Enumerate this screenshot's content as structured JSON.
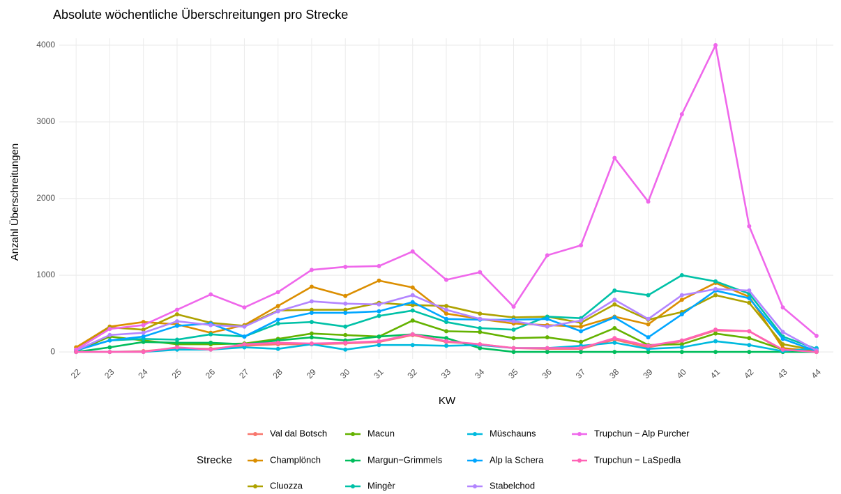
{
  "chart_data": {
    "type": "line",
    "title": "Absolute wöchentliche Überschreitungen pro Strecke",
    "x_label": "KW",
    "y_label": "Anzahl Überschreitungen",
    "legend_title": "Strecke",
    "categories": [
      "22",
      "23",
      "24",
      "25",
      "26",
      "27",
      "28",
      "29",
      "30",
      "31",
      "32",
      "33",
      "34",
      "35",
      "36",
      "37",
      "38",
      "39",
      "40",
      "41",
      "42",
      "43",
      "44"
    ],
    "ylim": [
      -90,
      4090
    ],
    "yticks": [
      0,
      1000,
      2000,
      3000,
      4000
    ],
    "grid": true,
    "legend": "bottom",
    "series": [
      {
        "name": "Val dal Botsch",
        "color": "#F8766D",
        "values": [
          0,
          0,
          10,
          50,
          40,
          80,
          100,
          100,
          110,
          130,
          220,
          130,
          100,
          50,
          40,
          40,
          160,
          60,
          140,
          280,
          270,
          20,
          0
        ]
      },
      {
        "name": "Champlönch",
        "color": "#DB8E00",
        "values": [
          60,
          330,
          390,
          360,
          250,
          350,
          600,
          850,
          730,
          930,
          840,
          500,
          430,
          370,
          350,
          330,
          460,
          360,
          680,
          900,
          720,
          50,
          10
        ]
      },
      {
        "name": "Cluozza",
        "color": "#AEA200",
        "values": [
          30,
          320,
          290,
          490,
          380,
          340,
          540,
          550,
          550,
          640,
          610,
          600,
          500,
          450,
          460,
          380,
          620,
          420,
          520,
          740,
          640,
          100,
          20
        ]
      },
      {
        "name": "Macun",
        "color": "#64B200",
        "values": [
          10,
          200,
          150,
          100,
          100,
          110,
          170,
          240,
          220,
          200,
          410,
          270,
          260,
          180,
          190,
          130,
          310,
          90,
          100,
          240,
          180,
          30,
          10
        ]
      },
      {
        "name": "Margun−Grimmels",
        "color": "#00BD5C",
        "values": [
          0,
          60,
          130,
          120,
          120,
          100,
          150,
          190,
          150,
          200,
          230,
          180,
          50,
          0,
          0,
          0,
          0,
          0,
          0,
          0,
          0,
          0,
          0
        ]
      },
      {
        "name": "Mingèr",
        "color": "#00C1A7",
        "values": [
          20,
          150,
          170,
          160,
          230,
          200,
          370,
          390,
          330,
          470,
          540,
          390,
          310,
          290,
          460,
          440,
          800,
          740,
          1000,
          920,
          760,
          200,
          40
        ]
      },
      {
        "name": "Müschauns",
        "color": "#00BADE",
        "values": [
          0,
          0,
          0,
          30,
          30,
          60,
          40,
          100,
          30,
          90,
          90,
          80,
          90,
          50,
          50,
          80,
          120,
          40,
          60,
          140,
          90,
          10,
          50
        ]
      },
      {
        "name": "Alp la Schera",
        "color": "#00A6FF",
        "values": [
          20,
          150,
          200,
          340,
          370,
          200,
          420,
          510,
          510,
          530,
          650,
          430,
          420,
          420,
          430,
          270,
          450,
          190,
          490,
          800,
          700,
          170,
          10
        ]
      },
      {
        "name": "Stabelchod",
        "color": "#B385FF",
        "values": [
          20,
          220,
          250,
          400,
          350,
          330,
          530,
          660,
          630,
          620,
          740,
          550,
          430,
          400,
          330,
          410,
          680,
          430,
          740,
          820,
          800,
          260,
          20
        ]
      },
      {
        "name": "Trupchun − Alp Purcher",
        "color": "#EF67EB",
        "values": [
          30,
          300,
          350,
          550,
          750,
          580,
          780,
          1070,
          1110,
          1120,
          1310,
          940,
          1040,
          590,
          1260,
          1390,
          2530,
          1960,
          3100,
          4000,
          1640,
          580,
          210
        ]
      },
      {
        "name": "Trupchun − LaSpedla",
        "color": "#FF63B6",
        "values": [
          0,
          0,
          0,
          60,
          30,
          100,
          120,
          110,
          120,
          140,
          230,
          140,
          100,
          50,
          50,
          50,
          180,
          80,
          150,
          290,
          270,
          30,
          0
        ]
      }
    ]
  }
}
